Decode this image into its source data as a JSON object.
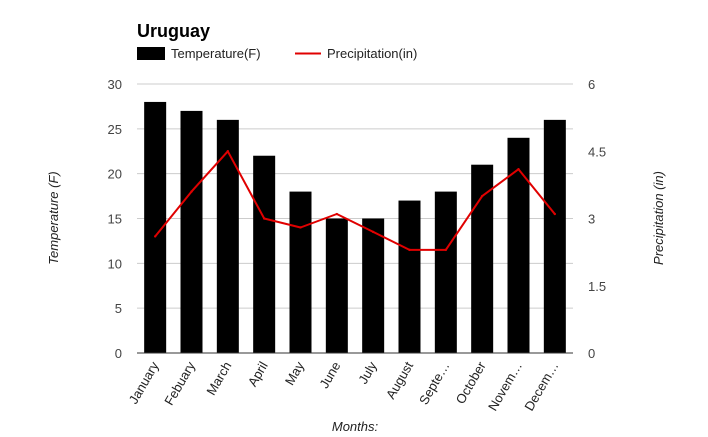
{
  "chart_data": {
    "type": "bar",
    "title": "Uruguay",
    "categories": [
      "January",
      "Febuary",
      "March",
      "April",
      "May",
      "June",
      "July",
      "August",
      "Septe…",
      "October",
      "Novem…",
      "Decem…"
    ],
    "series": [
      {
        "name": "Temperature(F)",
        "type": "bar",
        "axis": "left",
        "color": "#000000",
        "values": [
          28,
          27,
          26,
          22,
          18,
          15,
          15,
          17,
          18,
          21,
          24,
          26
        ]
      },
      {
        "name": "Precipitation(in)",
        "type": "line",
        "axis": "right",
        "color": "#e00000",
        "values": [
          2.6,
          3.6,
          4.5,
          3.0,
          2.8,
          3.1,
          2.7,
          2.3,
          2.3,
          3.5,
          4.1,
          3.1
        ]
      }
    ],
    "xlabel": "Months:",
    "ylabel": "Temperature (F)",
    "y2label": "Precipitation (in)",
    "ylim": [
      0,
      30
    ],
    "y2lim": [
      0,
      6
    ],
    "yticks": [
      "0",
      "5",
      "10",
      "15",
      "20",
      "25",
      "30"
    ],
    "y2ticks": [
      "0",
      "1.5",
      "3",
      "4.5",
      "6"
    ],
    "grid": true,
    "legend": "top-left"
  }
}
